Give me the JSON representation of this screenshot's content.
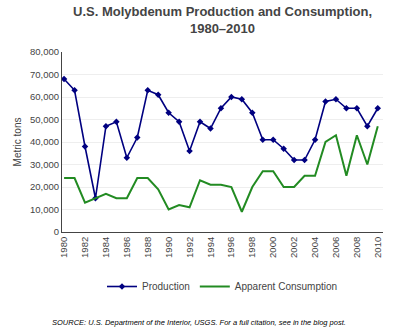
{
  "chart_data": {
    "type": "line",
    "title": "U.S. Molybdenum Production and Consumption,",
    "subtitle": "1980–2010",
    "ylabel": "Metric tons",
    "annotations": [
      "SOURCE: U.S. Department of the Interior, USGS. For a full citation, see in the blog post."
    ],
    "x": [
      1980,
      1981,
      1982,
      1983,
      1984,
      1985,
      1986,
      1987,
      1988,
      1989,
      1990,
      1991,
      1992,
      1993,
      1994,
      1995,
      1996,
      1997,
      1998,
      1999,
      2000,
      2001,
      2002,
      2003,
      2004,
      2005,
      2006,
      2007,
      2008,
      2009,
      2010
    ],
    "series": [
      {
        "name": "Production",
        "color": "#000080",
        "marker": "diamond",
        "values": [
          68000,
          63000,
          38000,
          15000,
          47000,
          49000,
          33000,
          42000,
          63000,
          61000,
          53000,
          49000,
          36000,
          49000,
          46000,
          55000,
          60000,
          59000,
          53000,
          41000,
          41000,
          37000,
          32000,
          32000,
          41000,
          58000,
          59000,
          55000,
          55000,
          47000,
          55000
        ]
      },
      {
        "name": "Apparent Consumption",
        "color": "#228B22",
        "values": [
          24000,
          24000,
          13000,
          15000,
          17000,
          15000,
          15000,
          24000,
          24000,
          19000,
          10000,
          12000,
          11000,
          23000,
          21000,
          21000,
          20000,
          9000,
          20000,
          27000,
          27000,
          20000,
          20000,
          25000,
          25000,
          40000,
          43000,
          25000,
          43000,
          30000,
          47000
        ]
      }
    ],
    "xlim": [
      1979.8,
      2010.5
    ],
    "xticks": [
      1980,
      1982,
      1984,
      1986,
      1988,
      1990,
      1992,
      1994,
      1996,
      1998,
      2000,
      2002,
      2004,
      2006,
      2008,
      2010
    ],
    "ylim": [
      0,
      80000
    ],
    "yticks": [
      0,
      {
        "value": 10000,
        "label": "10,000"
      },
      {
        "value": 20000,
        "label": "20,000"
      },
      {
        "value": 30000,
        "label": "30,000"
      },
      {
        "value": 40000,
        "label": "40,000"
      },
      {
        "value": 50000,
        "label": "50,000"
      },
      {
        "value": 60000,
        "label": "60,000"
      },
      {
        "value": 70000,
        "label": "70,000"
      },
      {
        "value": 80000,
        "label": "80,000"
      }
    ],
    "grid": true,
    "legend": "bottom"
  }
}
